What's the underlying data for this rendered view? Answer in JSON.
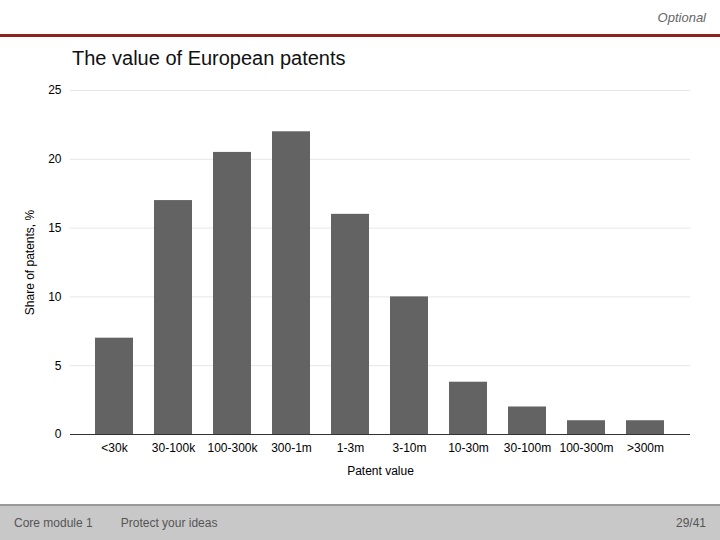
{
  "chart_data": {
    "type": "bar",
    "title": "The value of European patents",
    "categories": [
      "<30k",
      "30-100k",
      "100-300k",
      "300-1m",
      "1-3m",
      "3-10m",
      "10-30m",
      "30-100m",
      "100-300m",
      ">300m"
    ],
    "values": [
      7.0,
      17.0,
      20.5,
      22.0,
      16.0,
      10.0,
      3.8,
      2.0,
      1.0,
      1.0
    ],
    "color": "#636363",
    "xlabel": "Patent value",
    "ylabel": "Share of patents, %",
    "ylim": [
      0,
      25
    ],
    "yticks": [
      0,
      5,
      10,
      15,
      20,
      25
    ],
    "grid": true,
    "annotations": [
      "Optional",
      "Core module 1",
      "Protect your ideas",
      "29/41"
    ]
  }
}
